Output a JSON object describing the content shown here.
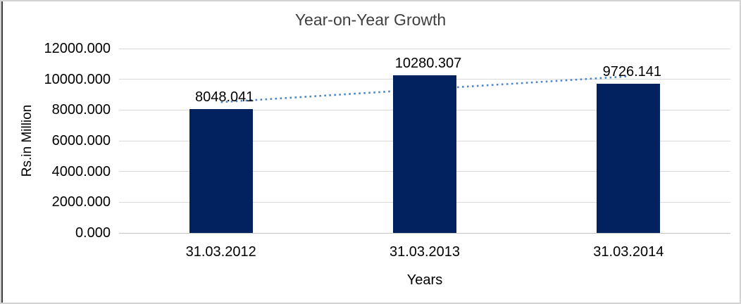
{
  "window": {
    "background": "#ffffff",
    "border_color": "#d3d3d3",
    "left_edge_line_color": "#404040",
    "title_color": "#404040",
    "text_color": "#000000"
  },
  "chart_data": {
    "type": "bar",
    "title": "Year-on-Year Growth",
    "xlabel": "Years",
    "ylabel": "Rs.in Million",
    "categories": [
      "31.03.2012",
      "31.03.2013",
      "31.03.2014"
    ],
    "values": [
      8048.041,
      10280.307,
      9726.141
    ],
    "data_labels": [
      "8048.041",
      "10280.307",
      "9726.141"
    ],
    "ylim": [
      0,
      12000
    ],
    "ytick_step": 2000,
    "ytick_labels": [
      "0.000",
      "2000.000",
      "4000.000",
      "6000.000",
      "8000.000",
      "10000.000",
      "12000.000"
    ],
    "grid": true,
    "legend": "none",
    "bar_color": "#02215f",
    "gridline_color": "#d9d9d9",
    "axis_line_color": "#c6c6c6",
    "trendline": {
      "type": "linear",
      "style": "dotted",
      "color": "#4e86c8",
      "start_value": 8512,
      "end_value": 10191
    }
  }
}
